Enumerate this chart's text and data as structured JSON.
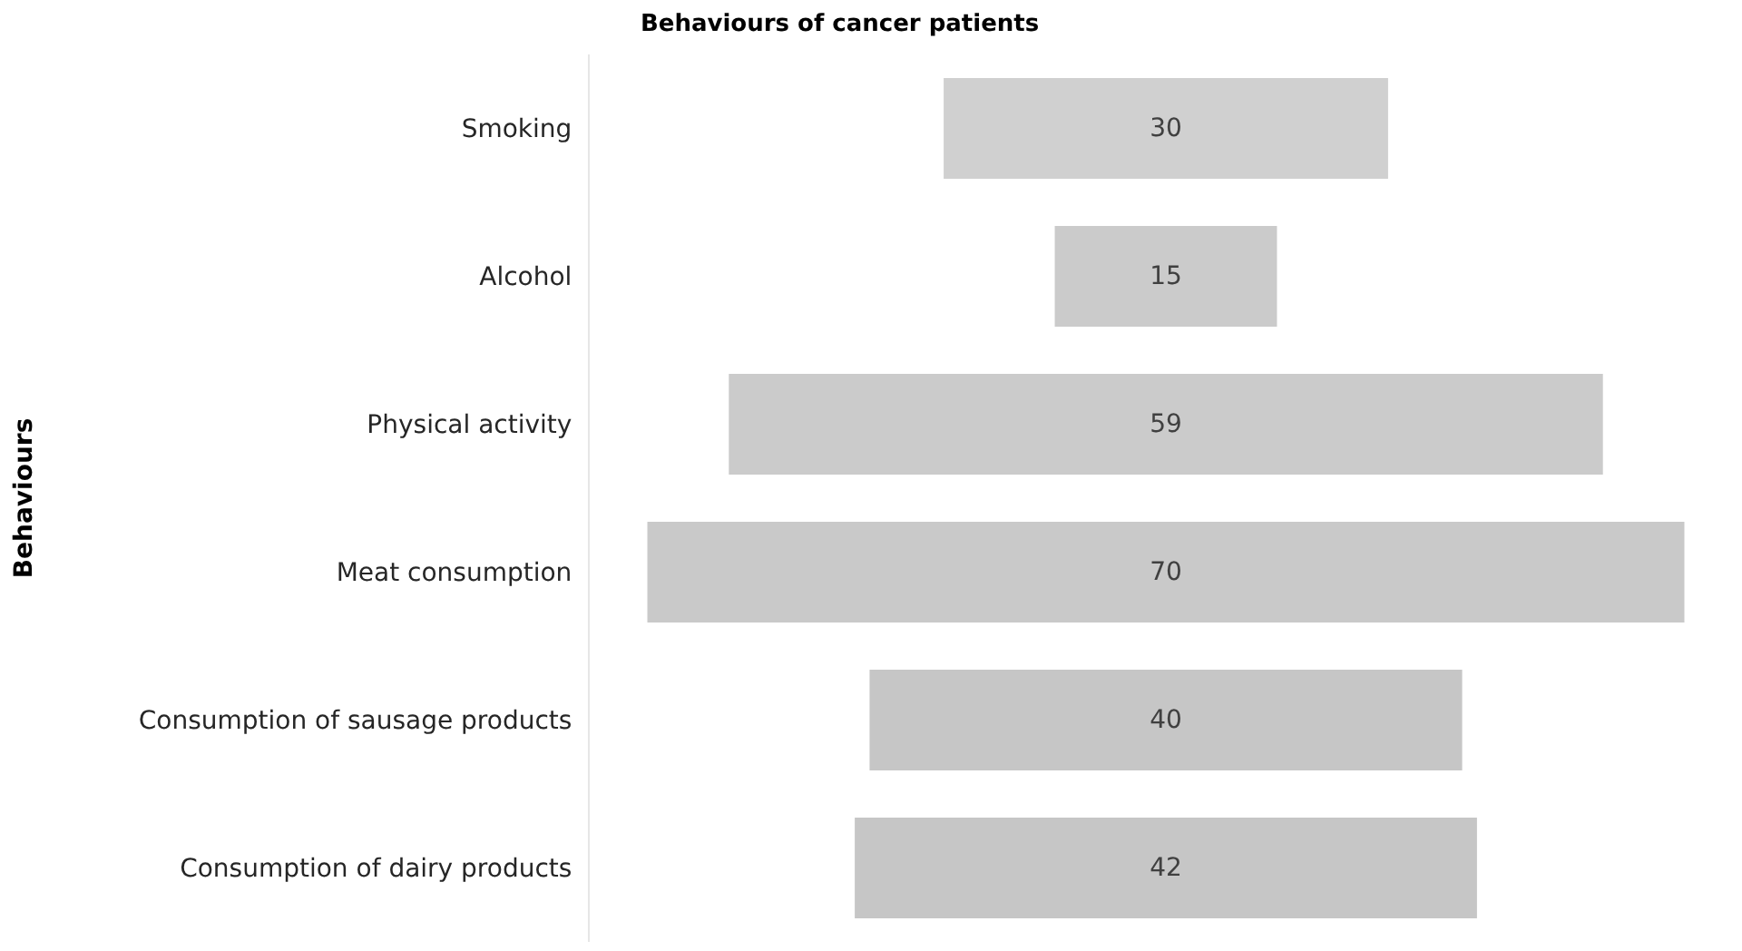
{
  "chart_data": {
    "type": "other",
    "title": "Behaviours of cancer patients",
    "ylabel": "Behaviours",
    "categories": [
      "Smoking",
      "Alcohol",
      "Physical activity",
      "Meat consumption",
      "Consumption of sausage products",
      "Consumption of dairy products"
    ],
    "values": [
      30,
      15,
      59,
      70,
      40,
      42
    ],
    "colors": [
      "#d0d0d0",
      "#cbcbcb",
      "#cbcbcb",
      "#c9c9c9",
      "#c6c6c6",
      "#c6c6c6"
    ],
    "data_labels": true
  }
}
